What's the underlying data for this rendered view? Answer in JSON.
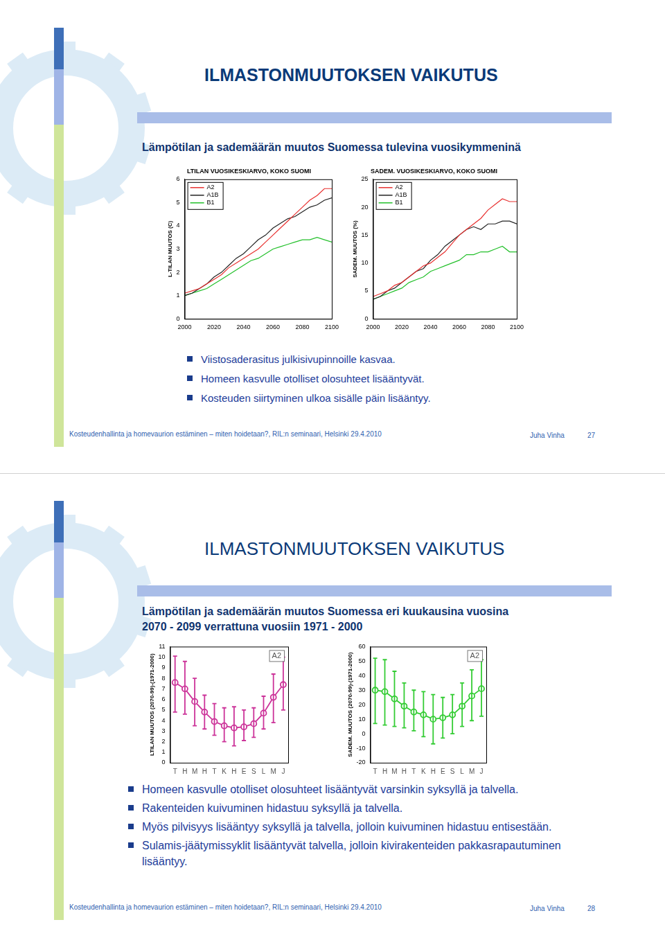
{
  "slides": [
    {
      "title": "ILMASTONMUUTOKSEN VAIKUTUS",
      "subtitle": [
        "Lämpötilan ja sademäärän muutos Suomessa tulevina vuosikymmeninä"
      ],
      "bullets": [
        "Viistosaderasitus julkisivupinnoille kasvaa.",
        "Homeen kasvulle otolliset olosuhteet lisääntyvät.",
        "Kosteuden siirtyminen ulkoa sisälle päin lisääntyy."
      ],
      "footer": "Kosteudenhallinta ja homevaurion estäminen – miten hoidetaan?, RIL:n seminaari, Helsinki 29.4.2010",
      "author": "Juha Vinha",
      "page": 27
    },
    {
      "title": "ILMASTONMUUTOKSEN VAIKUTUS",
      "subtitle": [
        "Lämpötilan ja sademäärän muutos Suomessa eri kuukausina vuosina",
        "2070 - 2099 verrattuna vuosiin 1971 - 2000"
      ],
      "bullets": [
        "Homeen kasvulle otolliset olosuhteet lisääntyvät varsinkin syksyllä ja talvella.",
        "Rakenteiden kuivuminen hidastuu syksyllä ja talvella.",
        "Myös pilvisyys lisääntyy syksyllä ja talvella, jolloin kuivuminen hidastuu entisestään.",
        "Sulamis-jäätymissyklit lisääntyvät talvella, jolloin kivirakenteiden pakkasrapautuminen lisääntyy."
      ],
      "footer": "Kosteudenhallinta ja homevaurion estäminen – miten hoidetaan?, RIL:n seminaari, Helsinki 29.4.2010",
      "author": "Juha Vinha",
      "page": 28
    }
  ],
  "chart_data": [
    {
      "type": "line",
      "title": "LTILAN VUOSIKESKIARVO, KOKO SUOMI",
      "y_label": "L-TILAN MUUTOS (C)",
      "x": [
        2000,
        2005,
        2010,
        2015,
        2020,
        2025,
        2030,
        2035,
        2040,
        2045,
        2050,
        2055,
        2060,
        2065,
        2070,
        2075,
        2080,
        2085,
        2090,
        2095,
        2100
      ],
      "series": [
        {
          "name": "A2",
          "color": "#e8302f",
          "marker": "none",
          "values": [
            1.1,
            1.2,
            1.3,
            1.5,
            1.7,
            1.9,
            2.2,
            2.4,
            2.6,
            2.8,
            3.0,
            3.3,
            3.6,
            3.9,
            4.2,
            4.5,
            4.8,
            5.1,
            5.3,
            5.6,
            5.6
          ]
        },
        {
          "name": "A1B",
          "color": "#222222",
          "marker": "none",
          "values": [
            1.0,
            1.1,
            1.3,
            1.5,
            1.8,
            2.0,
            2.3,
            2.6,
            2.8,
            3.1,
            3.4,
            3.6,
            3.9,
            4.1,
            4.3,
            4.4,
            4.6,
            4.8,
            4.9,
            5.1,
            5.2
          ]
        },
        {
          "name": "B1",
          "color": "#22c02a",
          "marker": "none",
          "values": [
            1.0,
            1.1,
            1.2,
            1.3,
            1.5,
            1.7,
            1.9,
            2.1,
            2.3,
            2.5,
            2.6,
            2.8,
            3.0,
            3.1,
            3.2,
            3.3,
            3.4,
            3.4,
            3.5,
            3.4,
            3.3
          ]
        }
      ],
      "xlim": [
        2000,
        2100
      ],
      "xticks": [
        2000,
        2020,
        2040,
        2060,
        2080,
        2100
      ],
      "ylim": [
        0,
        6
      ],
      "yticks": [
        0,
        1,
        2,
        3,
        4,
        5,
        6
      ],
      "grid": false,
      "legend": "upper left"
    },
    {
      "type": "line",
      "title": "SADEM. VUOSIKESKIARVO, KOKO SUOMI",
      "y_label": "SADEM. MUUTOS (%)",
      "x": [
        2000,
        2005,
        2010,
        2015,
        2020,
        2025,
        2030,
        2035,
        2040,
        2045,
        2050,
        2055,
        2060,
        2065,
        2070,
        2075,
        2080,
        2085,
        2090,
        2095,
        2100
      ],
      "series": [
        {
          "name": "A2",
          "color": "#e8302f",
          "marker": "none",
          "values": [
            4,
            4.5,
            5,
            6,
            6.5,
            7.5,
            8.5,
            9.5,
            10,
            11,
            12,
            13.5,
            15,
            16,
            17,
            18,
            19.5,
            20.5,
            21.5,
            21,
            21
          ]
        },
        {
          "name": "A1B",
          "color": "#222222",
          "marker": "none",
          "values": [
            3.5,
            4,
            5,
            5.5,
            6.5,
            7.5,
            8.5,
            9,
            10.5,
            11.5,
            13,
            14,
            15,
            16,
            16.5,
            16,
            17,
            17,
            17.5,
            17.5,
            17
          ]
        },
        {
          "name": "B1",
          "color": "#22c02a",
          "marker": "none",
          "values": [
            3.5,
            4,
            4.5,
            5,
            5.5,
            6.5,
            7,
            7.5,
            8.5,
            9,
            9.5,
            10,
            10.5,
            11.5,
            11.5,
            12,
            12,
            12.5,
            13,
            12,
            12
          ]
        }
      ],
      "xlim": [
        2000,
        2100
      ],
      "xticks": [
        2000,
        2020,
        2040,
        2060,
        2080,
        2100
      ],
      "ylim": [
        0,
        25
      ],
      "yticks": [
        0,
        5,
        10,
        15,
        20,
        25
      ],
      "grid": false,
      "legend": "upper left"
    },
    {
      "type": "line",
      "annotation": "A2",
      "y_label": "LTILAN MUUTOS (2070-99)-(1971-2000)",
      "categories": [
        "T",
        "H",
        "M",
        "H",
        "T",
        "K",
        "H",
        "E",
        "S",
        "L",
        "M",
        "J"
      ],
      "values": [
        7.6,
        7.0,
        5.8,
        4.8,
        3.9,
        3.5,
        3.3,
        3.4,
        3.7,
        4.7,
        6.2,
        7.4
      ],
      "error_low": [
        4.8,
        4.6,
        3.5,
        3.2,
        2.6,
        2.0,
        1.6,
        2.1,
        2.4,
        3.2,
        3.8,
        5.0
      ],
      "error_high": [
        10.1,
        9.6,
        8.0,
        6.4,
        5.6,
        5.2,
        5.3,
        5.0,
        5.2,
        6.3,
        8.4,
        10.0
      ],
      "color": "#cc3399",
      "marker": "circle",
      "ylim": [
        0,
        11
      ],
      "yticks": [
        0,
        1,
        2,
        3,
        4,
        5,
        6,
        7,
        8,
        9,
        10,
        11
      ],
      "grid": false
    },
    {
      "type": "line",
      "annotation": "A2",
      "y_label": "SADEM. MUUTOS (2070-99)-(1971-2000)",
      "categories": [
        "T",
        "H",
        "M",
        "H",
        "T",
        "K",
        "H",
        "E",
        "S",
        "L",
        "M",
        "J"
      ],
      "values": [
        30,
        29,
        24,
        19,
        15,
        13,
        10,
        11,
        13,
        19,
        26,
        31
      ],
      "error_low": [
        7,
        6,
        5,
        4,
        2,
        -2,
        -7,
        -3,
        0,
        5,
        9,
        12
      ],
      "error_high": [
        52,
        51,
        43,
        35,
        30,
        29,
        27,
        25,
        27,
        35,
        44,
        51
      ],
      "color": "#33cc33",
      "marker": "circle",
      "ylim": [
        -20,
        60
      ],
      "yticks": [
        -20,
        -10,
        0,
        10,
        20,
        30,
        40,
        50,
        60
      ],
      "grid": false
    }
  ]
}
